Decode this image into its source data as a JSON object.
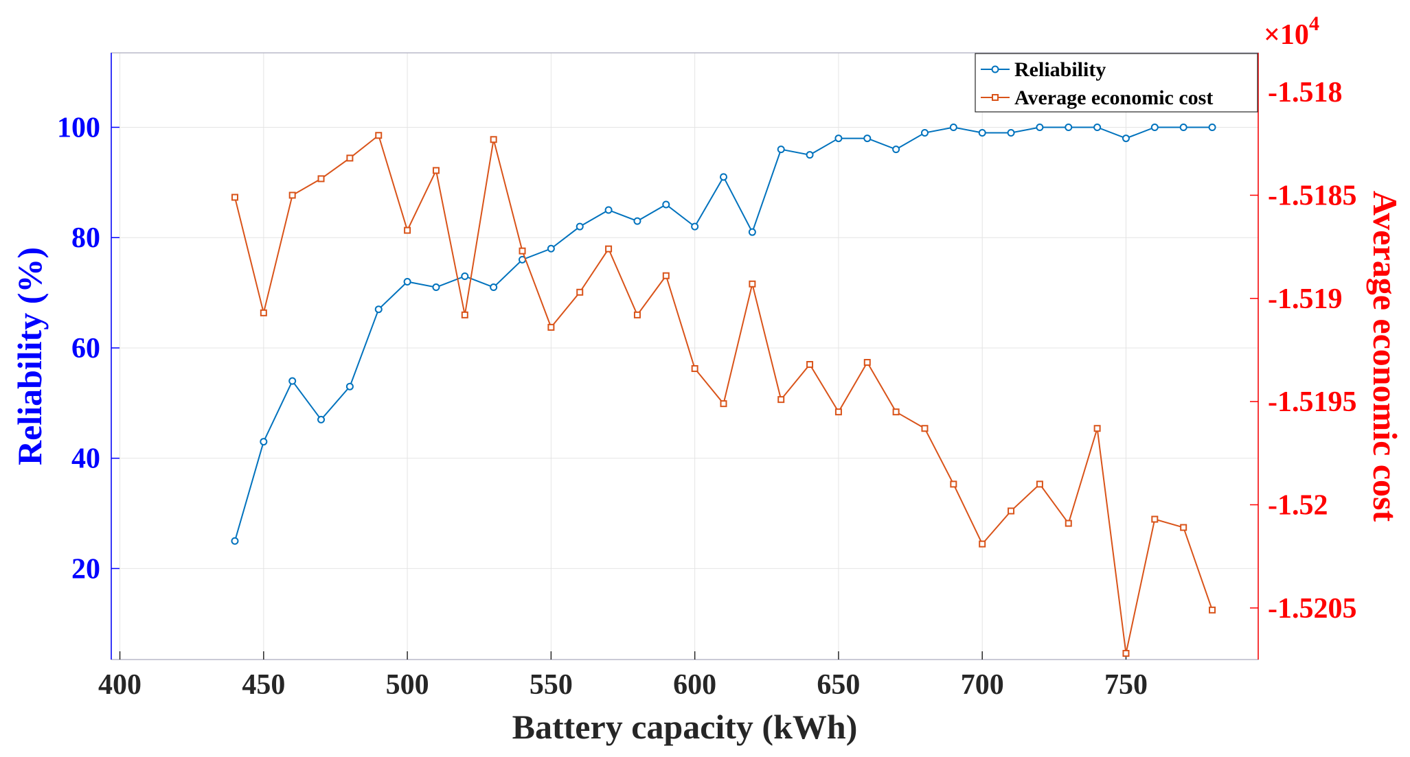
{
  "chart_data": {
    "type": "line",
    "xlabel": "Battery capacity (kWh)",
    "ylabel_left": "Reliability (%)",
    "ylabel_right": "Average economic cost",
    "right_multiplier_base": "×10",
    "right_multiplier_exponent": "4",
    "xlim": [
      397,
      796
    ],
    "ylim_left": [
      3.5,
      113.5
    ],
    "ylim_right": [
      -1.52075,
      -1.51781
    ],
    "x_ticks": [
      400,
      450,
      500,
      550,
      600,
      650,
      700,
      750
    ],
    "y_left_ticks": [
      20,
      40,
      60,
      80,
      100
    ],
    "y_right_ticks": [
      -1.518,
      -1.5185,
      -1.519,
      -1.5195,
      -1.52,
      -1.5205
    ],
    "y_right_tick_labels": [
      "-1.518",
      "-1.5185",
      "-1.519",
      "-1.5195",
      "-1.52",
      "-1.5205"
    ],
    "legend_position": "top-right",
    "x": [
      440,
      450,
      460,
      470,
      480,
      490,
      500,
      510,
      520,
      530,
      540,
      550,
      560,
      570,
      580,
      590,
      600,
      610,
      620,
      630,
      640,
      650,
      660,
      670,
      680,
      690,
      700,
      710,
      720,
      730,
      740,
      750,
      760,
      770,
      780
    ],
    "series": [
      {
        "name": "Reliability",
        "axis": "left",
        "color": "#0072bd",
        "marker": "circle",
        "values": [
          25,
          43,
          54,
          47,
          53,
          67,
          72,
          71,
          73,
          71,
          76,
          78,
          82,
          85,
          83,
          86,
          82,
          91,
          81,
          96,
          95,
          98,
          98,
          96,
          99,
          100,
          99,
          99,
          100,
          100,
          100,
          98,
          100,
          100,
          100
        ]
      },
      {
        "name": "Average economic cost",
        "axis": "right",
        "color": "#d95319",
        "marker": "square",
        "values": [
          -1.51851,
          -1.51907,
          -1.5185,
          -1.51842,
          -1.51832,
          -1.51821,
          -1.51867,
          -1.51838,
          -1.51908,
          -1.51823,
          -1.51877,
          -1.51914,
          -1.51897,
          -1.51876,
          -1.51908,
          -1.51889,
          -1.51934,
          -1.51951,
          -1.51893,
          -1.51949,
          -1.51932,
          -1.51955,
          -1.51931,
          -1.51955,
          -1.51963,
          -1.5199,
          -1.52019,
          -1.52003,
          -1.5199,
          -1.52009,
          -1.51963,
          -1.52072,
          -1.52007,
          -1.52011,
          -1.52051
        ]
      }
    ]
  }
}
